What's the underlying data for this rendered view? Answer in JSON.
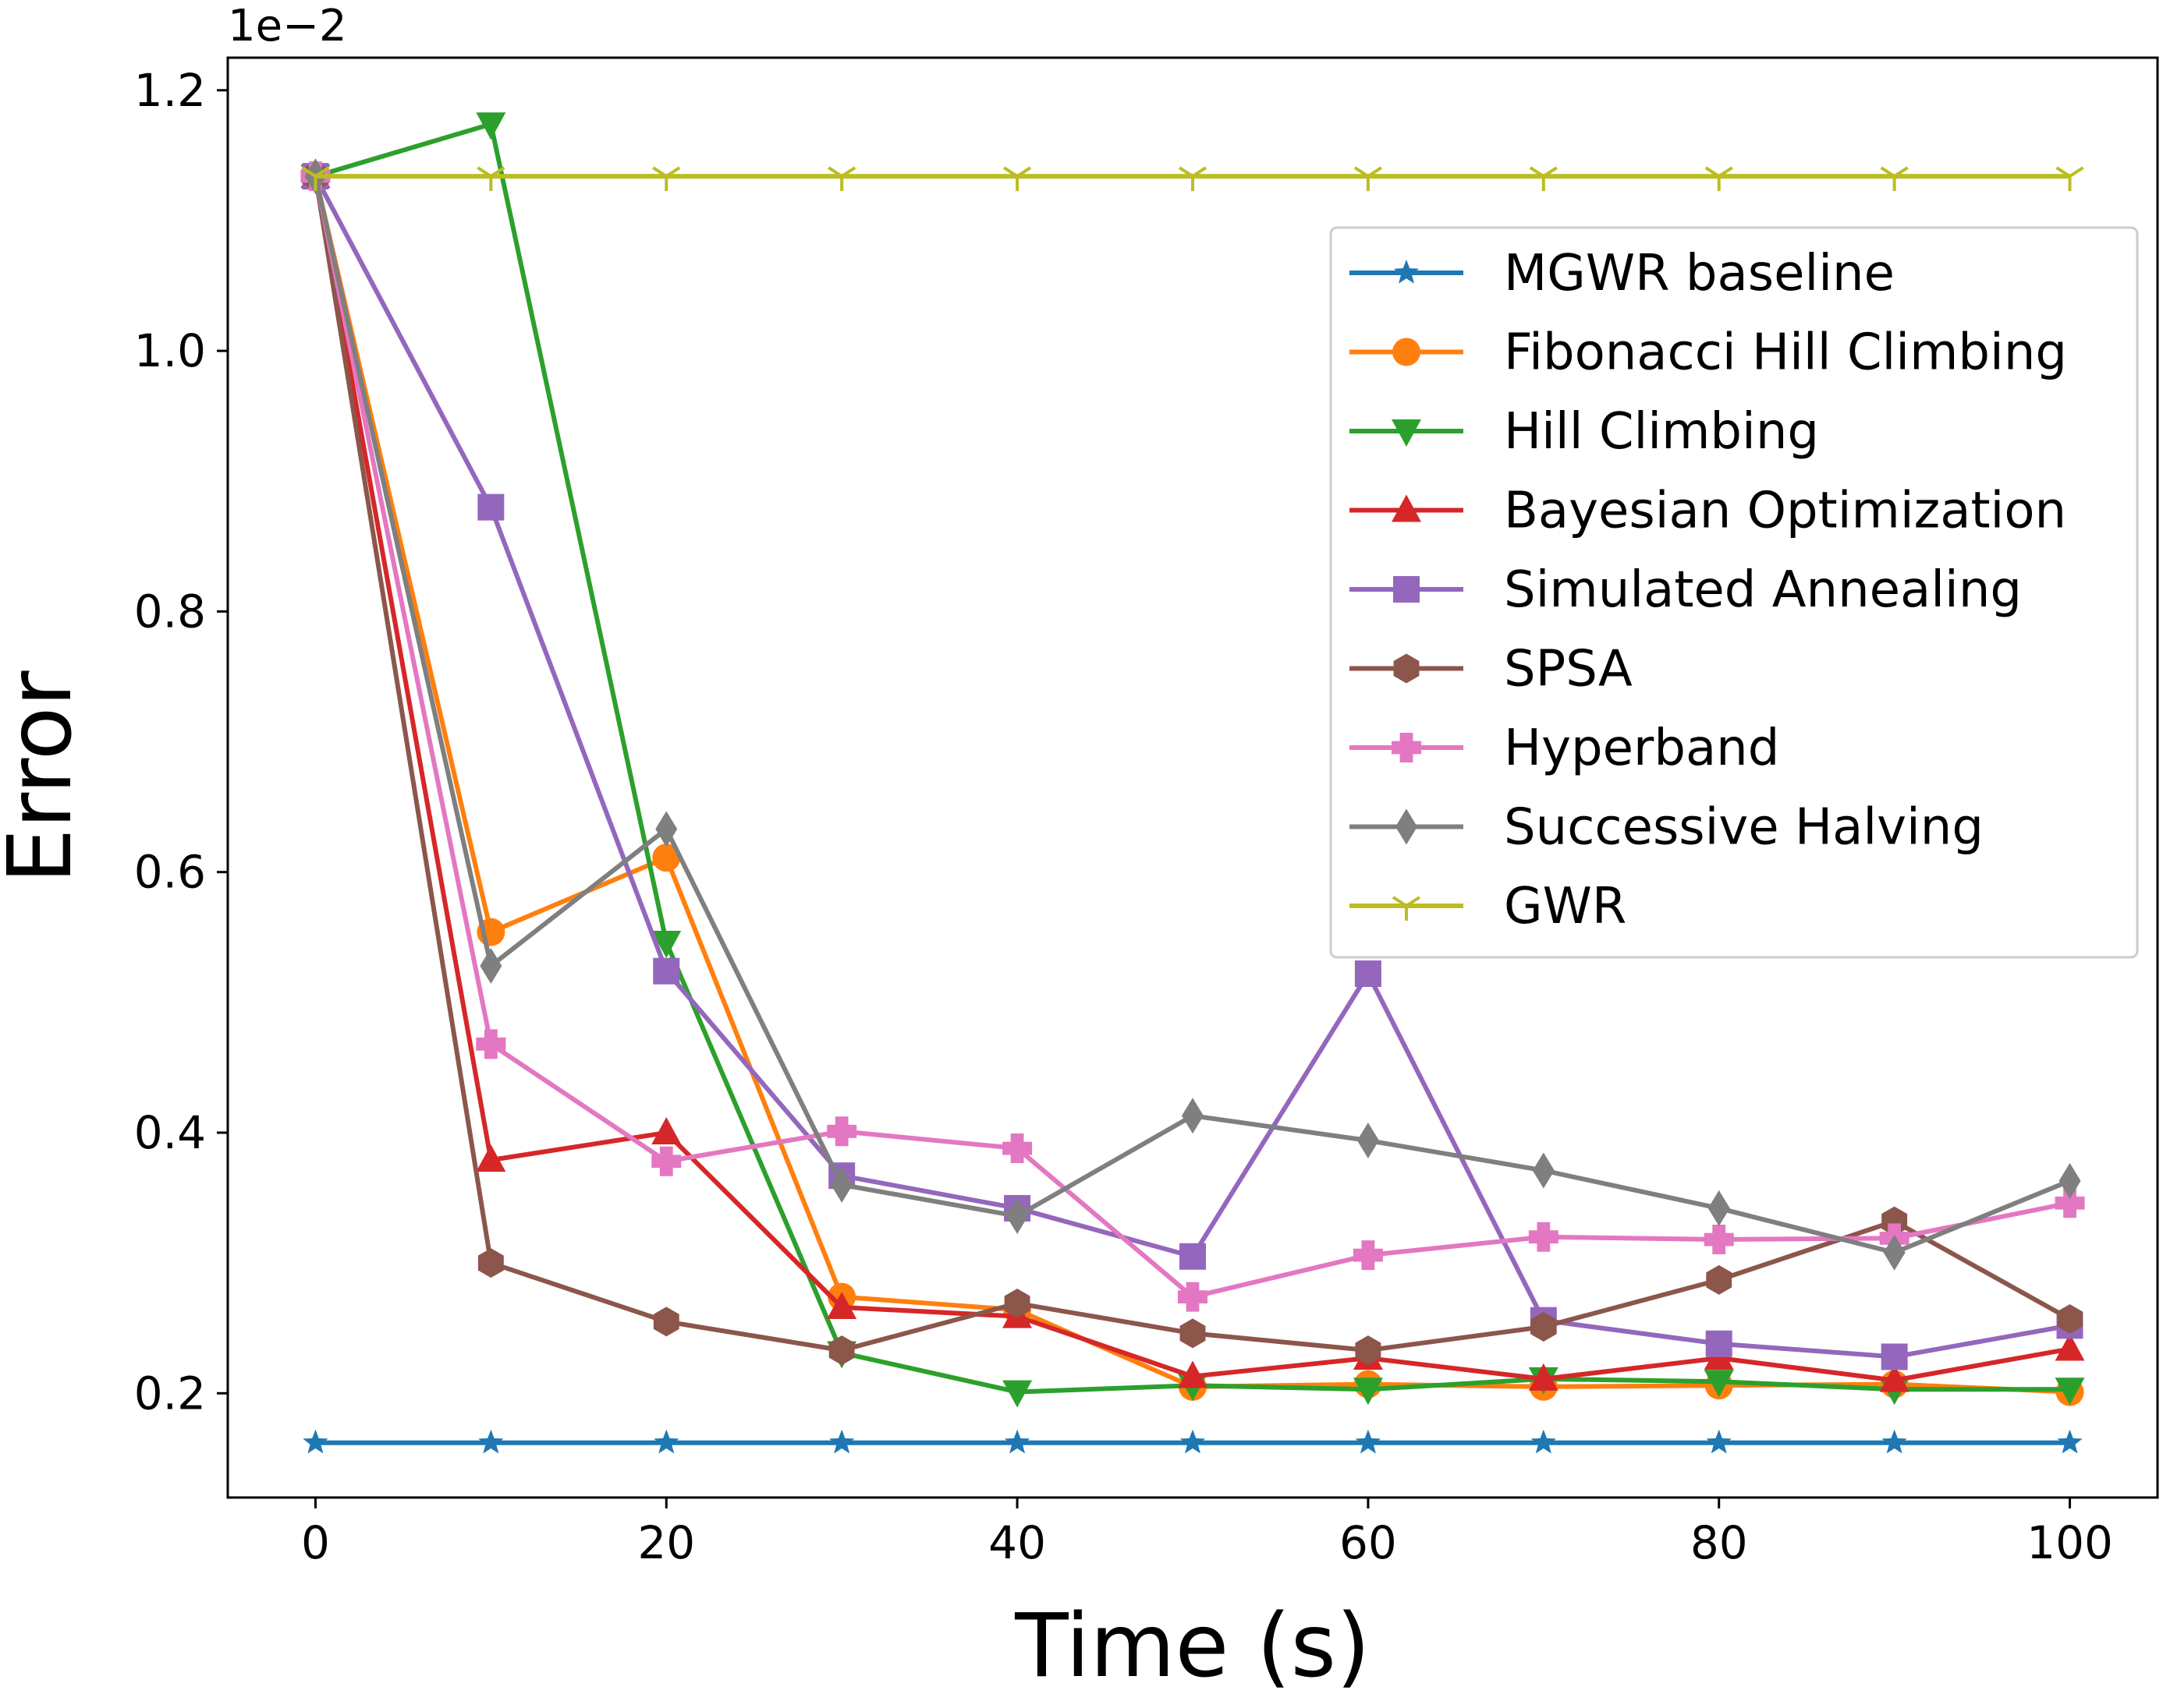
{
  "chart_data": {
    "type": "line",
    "xlabel": "Time (s)",
    "ylabel": "Error",
    "y_scale_label": "1e−2",
    "xlim": [
      -5,
      105
    ],
    "ylim": [
      0.12,
      1.225
    ],
    "x_ticks": [
      0,
      20,
      40,
      60,
      80,
      100
    ],
    "x_tick_labels": [
      "0",
      "20",
      "40",
      "60",
      "80",
      "100"
    ],
    "y_ticks": [
      0.2,
      0.4,
      0.6,
      0.8,
      1.0,
      1.2
    ],
    "y_tick_labels": [
      "0.2",
      "0.4",
      "0.6",
      "0.8",
      "1.0",
      "1.2"
    ],
    "grid": false,
    "legend_position": "center-right",
    "x": [
      0,
      10,
      20,
      30,
      40,
      50,
      60,
      70,
      80,
      90,
      100
    ],
    "series": [
      {
        "name": "MGWR baseline",
        "color": "#1f77b4",
        "marker": "star",
        "values": [
          0.162,
          0.162,
          0.162,
          0.162,
          0.162,
          0.162,
          0.162,
          0.162,
          0.162,
          0.162,
          0.162
        ]
      },
      {
        "name": "Fibonacci Hill Climbing",
        "color": "#ff7f0e",
        "marker": "circle",
        "values": [
          1.134,
          0.554,
          0.611,
          0.274,
          0.264,
          0.205,
          0.207,
          0.205,
          0.206,
          0.207,
          0.201
        ]
      },
      {
        "name": "Hill Climbing",
        "color": "#2ca02c",
        "marker": "triangle-down",
        "values": [
          1.134,
          1.174,
          0.546,
          0.231,
          0.201,
          0.206,
          0.203,
          0.211,
          0.209,
          0.203,
          0.203
        ]
      },
      {
        "name": "Bayesian Optimization",
        "color": "#d62728",
        "marker": "triangle-up",
        "values": [
          1.134,
          0.379,
          0.4,
          0.266,
          0.259,
          0.213,
          0.227,
          0.211,
          0.227,
          0.21,
          0.234
        ]
      },
      {
        "name": "Simulated Annealing",
        "color": "#9467bd",
        "marker": "square",
        "values": [
          1.134,
          0.88,
          0.524,
          0.367,
          0.342,
          0.305,
          0.522,
          0.256,
          0.238,
          0.228,
          0.252
        ]
      },
      {
        "name": "SPSA",
        "color": "#8c564b",
        "marker": "hexagon",
        "values": [
          1.134,
          0.3,
          0.255,
          0.233,
          0.269,
          0.246,
          0.233,
          0.251,
          0.287,
          0.332,
          0.257
        ]
      },
      {
        "name": "Hyperband",
        "color": "#e377c2",
        "marker": "plus",
        "values": [
          1.134,
          0.468,
          0.378,
          0.401,
          0.388,
          0.274,
          0.306,
          0.32,
          0.318,
          0.319,
          0.346
        ]
      },
      {
        "name": "Successive Halving",
        "color": "#7f7f7f",
        "marker": "diamond",
        "values": [
          1.134,
          0.528,
          0.633,
          0.36,
          0.336,
          0.413,
          0.394,
          0.371,
          0.342,
          0.308,
          0.363
        ]
      },
      {
        "name": "GWR",
        "color": "#bcbd22",
        "marker": "tri-down",
        "values": [
          1.134,
          1.134,
          1.134,
          1.134,
          1.134,
          1.134,
          1.134,
          1.134,
          1.134,
          1.134,
          1.134
        ]
      }
    ]
  }
}
